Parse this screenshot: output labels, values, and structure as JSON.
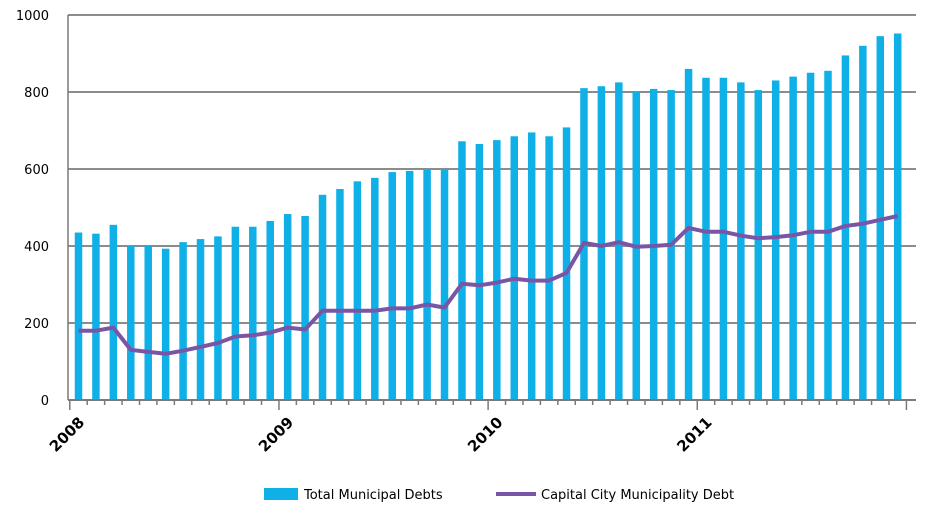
{
  "chart_data": {
    "type": "bar",
    "title": "",
    "xlabel": "",
    "ylabel": "",
    "ylim": [
      0,
      1000
    ],
    "yticks": [
      0,
      200,
      400,
      600,
      800,
      1000
    ],
    "year_labels": [
      "2008",
      "2009",
      "2010",
      "2011"
    ],
    "grid": "horizontal",
    "legend_position": "bottom",
    "colors": {
      "bars": "#0fb0e8",
      "line": "#7a55a6",
      "grid": "#8c8c8c",
      "axis": "#7a7a7a"
    },
    "series": [
      {
        "name": "Total Municipal Debts",
        "kind": "bar",
        "values": [
          435,
          432,
          455,
          400,
          400,
          393,
          410,
          418,
          425,
          450,
          450,
          465,
          483,
          478,
          533,
          548,
          568,
          577,
          592,
          595,
          598,
          598,
          672,
          665,
          675,
          685,
          695,
          685,
          708,
          810,
          815,
          825,
          800,
          808,
          805,
          860,
          837,
          837,
          825,
          805,
          830,
          840,
          850,
          855,
          895,
          920,
          945,
          952
        ]
      },
      {
        "name": "Capital City Municipality Debt",
        "kind": "line",
        "values": [
          180,
          180,
          188,
          130,
          125,
          120,
          128,
          138,
          148,
          165,
          168,
          175,
          188,
          183,
          232,
          232,
          232,
          232,
          238,
          238,
          248,
          240,
          302,
          298,
          305,
          315,
          310,
          310,
          330,
          408,
          400,
          410,
          398,
          400,
          403,
          447,
          437,
          437,
          427,
          420,
          423,
          428,
          437,
          437,
          452,
          458,
          468,
          478
        ]
      }
    ]
  }
}
